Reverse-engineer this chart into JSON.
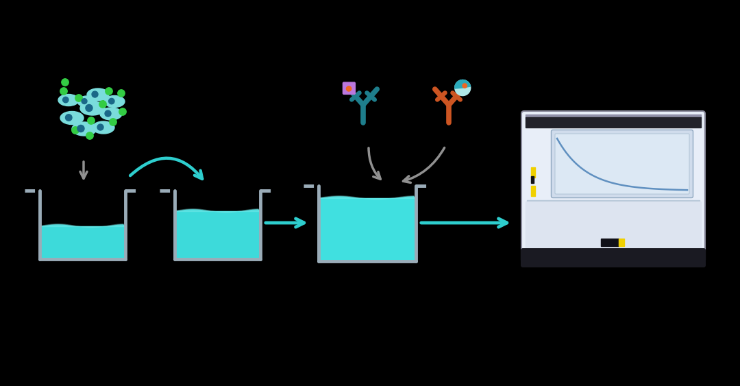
{
  "bg_color": "#000000",
  "teal": "#2ECECE",
  "teal_liquid": "#3DDADA",
  "teal_liquid2": "#40E0E0",
  "gray_wall": "#9AACB8",
  "gray_arrow": "#909090",
  "green": "#33CC44",
  "teal_ab": "#1E7E8C",
  "orange_ab": "#CC5522",
  "purple_tag": "#BB77DD",
  "orange_dot": "#EE6622",
  "cell_color": "#7ADCDC",
  "cell_outline": "#40AACC",
  "cell_nucleus": "#1A6888",
  "reader_outer": "#E8EEF8",
  "reader_border": "#88889A",
  "reader_top": "#1A1A22",
  "reader_inner_top": "#22222A",
  "reader_screen": "#D0DCEC",
  "reader_screen2": "#C8D8EC",
  "reader_mid_bar": "#B8C8D8",
  "reader_lower": "#DDE4F0",
  "reader_base": "#1A1A22",
  "yellow": "#F0D000",
  "black_btn": "#111118",
  "white_btn": "#EEEEEE"
}
